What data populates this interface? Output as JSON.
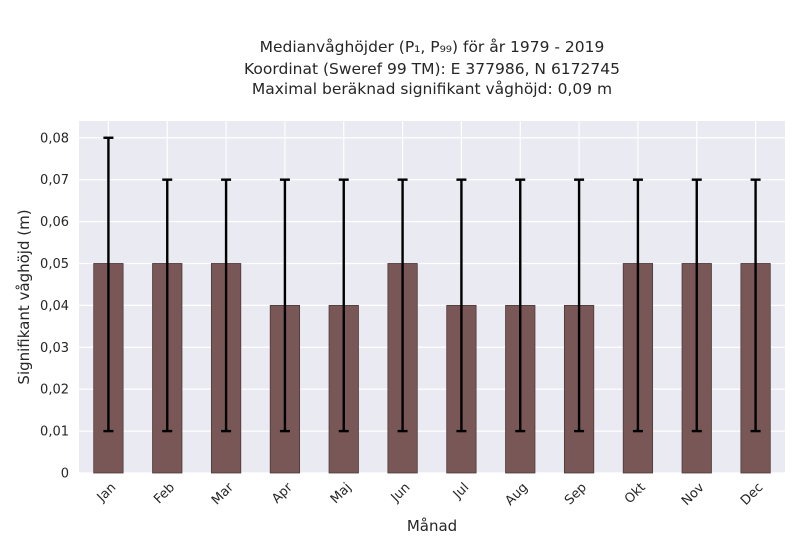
{
  "chart_data": {
    "type": "bar",
    "title_lines": [
      "Medianvåghöjder (P₁, P₉₉) för år 1979 - 2019",
      "Koordinat (Sweref 99 TM): E 377986, N 6172745",
      "Maximal beräknad signifikant våghöjd: 0,09 m"
    ],
    "xlabel": "Månad",
    "ylabel": "Signifikant våghöjd (m)",
    "categories": [
      "Jan",
      "Feb",
      "Mar",
      "Apr",
      "Maj",
      "Jun",
      "Jul",
      "Aug",
      "Sep",
      "Okt",
      "Nov",
      "Dec"
    ],
    "values": [
      0.05,
      0.05,
      0.05,
      0.04,
      0.04,
      0.05,
      0.04,
      0.04,
      0.04,
      0.05,
      0.05,
      0.05
    ],
    "error_low": [
      0.01,
      0.01,
      0.01,
      0.01,
      0.01,
      0.01,
      0.01,
      0.01,
      0.01,
      0.01,
      0.01,
      0.01
    ],
    "error_high": [
      0.08,
      0.07,
      0.07,
      0.07,
      0.07,
      0.07,
      0.07,
      0.07,
      0.07,
      0.07,
      0.07,
      0.07
    ],
    "yticks": [
      0,
      0.01,
      0.02,
      0.03,
      0.04,
      0.05,
      0.06,
      0.07,
      0.08
    ],
    "ytick_labels": [
      "0",
      "0,01",
      "0,02",
      "0,03",
      "0,04",
      "0,05",
      "0,06",
      "0,07",
      "0,08"
    ],
    "ylim": [
      0,
      0.084
    ],
    "grid": true,
    "colors": {
      "bar": "#7a5757",
      "plot_background": "#eaeaf2",
      "grid": "#ffffff",
      "error_bar": "#000000"
    }
  }
}
